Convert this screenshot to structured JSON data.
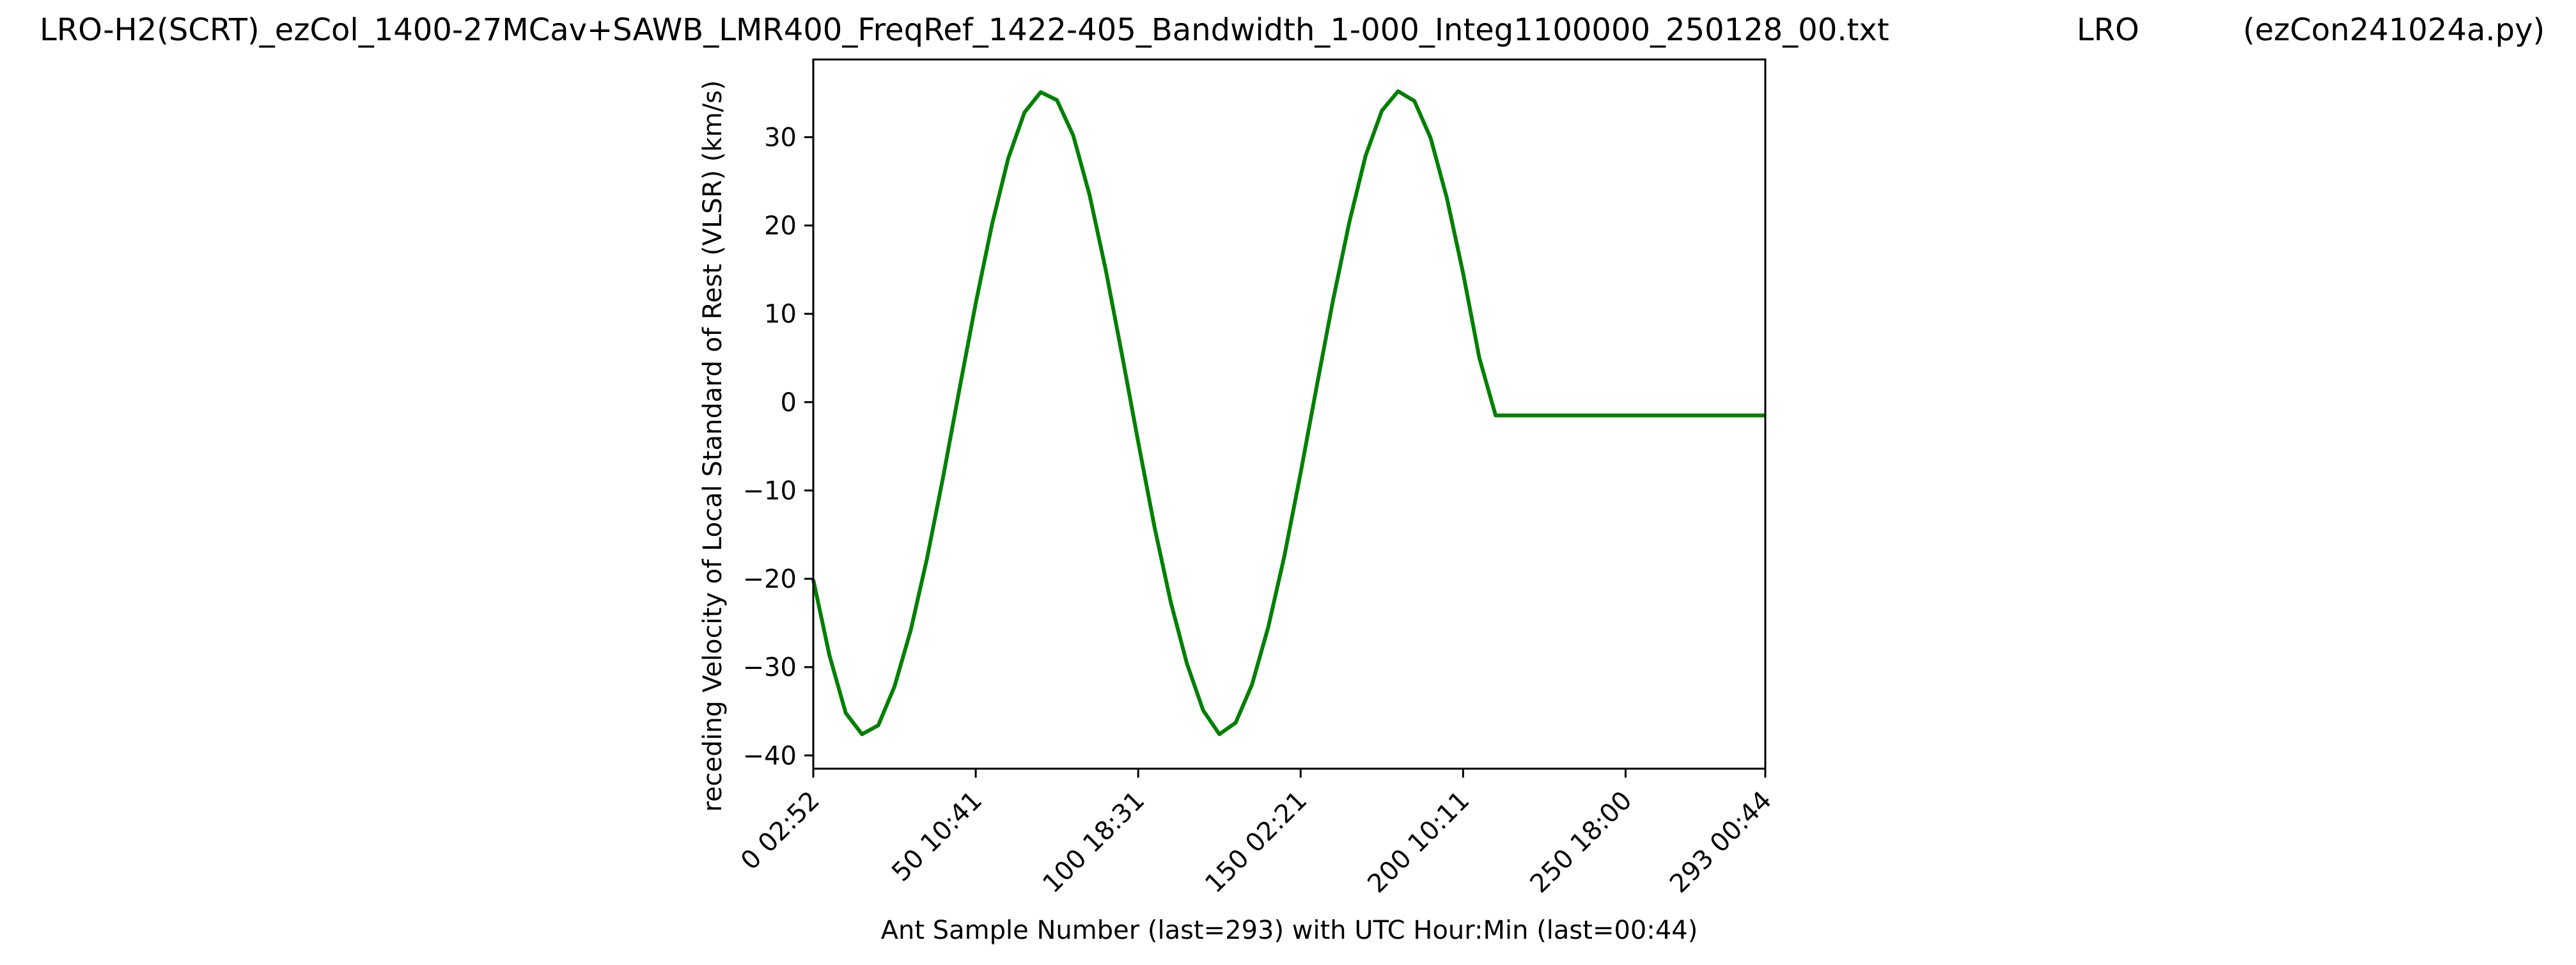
{
  "chart_data": {
    "type": "line",
    "title_parts": [
      "LRO-H2(SCRT)_ezCol_1400-27MCav+SAWB_LMR400_FreqRef_1422-405_Bandwidth_1-000_Integ1100000_250128_00.txt",
      "LRO",
      "(ezCon241024a.py)"
    ],
    "xlabel": "Ant Sample Number (last=293) with UTC Hour:Min (last=00:44)",
    "ylabel": "receding Velocity of Local Standard of Rest (VLSR) (km/s)",
    "xlim": [
      0,
      293
    ],
    "ylim": [
      -41.5,
      38.8
    ],
    "x_ticks": [
      {
        "value": 0,
        "label": "0  02:52"
      },
      {
        "value": 50,
        "label": "50  10:41"
      },
      {
        "value": 100,
        "label": "100  18:31"
      },
      {
        "value": 150,
        "label": "150  02:21"
      },
      {
        "value": 200,
        "label": "200  10:11"
      },
      {
        "value": 250,
        "label": "250  18:00"
      },
      {
        "value": 293,
        "label": "293  00:44"
      }
    ],
    "y_ticks": [
      {
        "value": 30,
        "label": "30"
      },
      {
        "value": 20,
        "label": "20"
      },
      {
        "value": 10,
        "label": "10"
      },
      {
        "value": 0,
        "label": "0"
      },
      {
        "value": -10,
        "label": "−10"
      },
      {
        "value": -20,
        "label": "−20"
      },
      {
        "value": -30,
        "label": "−30"
      },
      {
        "value": -40,
        "label": "−40"
      }
    ],
    "grid": false,
    "series": [
      {
        "color": "#008000",
        "x": [
          0,
          5,
          10,
          15,
          20,
          25,
          30,
          35,
          40,
          45,
          50,
          55,
          60,
          65,
          70,
          75,
          80,
          85,
          90,
          95,
          100,
          105,
          110,
          115,
          120,
          125,
          130,
          135,
          140,
          145,
          150,
          155,
          160,
          165,
          170,
          175,
          180,
          185,
          190,
          195,
          200,
          205,
          210,
          215,
          220,
          225,
          230,
          235,
          240,
          245,
          250,
          255,
          260,
          265,
          270,
          275,
          280,
          285,
          290,
          293
        ],
        "y": [
          -20.1,
          -28.7,
          -35.2,
          -37.6,
          -36.6,
          -32.2,
          -25.8,
          -17.7,
          -8.4,
          1.5,
          11.2,
          20.1,
          27.6,
          32.8,
          35.1,
          34.2,
          30.2,
          23.5,
          15.0,
          5.4,
          -4.5,
          -14.1,
          -22.6,
          -29.6,
          -34.9,
          -37.6,
          -36.3,
          -32.0,
          -25.5,
          -17.4,
          -8.0,
          1.9,
          11.6,
          20.4,
          27.9,
          33.0,
          35.2,
          34.1,
          29.9,
          23.1,
          14.6,
          5.0,
          -1.5,
          -1.5,
          -1.5,
          -1.5,
          -1.5,
          -1.5,
          -1.5,
          -1.5,
          -1.5,
          -1.5,
          -1.5,
          -1.5,
          -1.5,
          -1.5,
          -1.5,
          -1.5,
          -1.5,
          -1.5
        ]
      }
    ]
  }
}
